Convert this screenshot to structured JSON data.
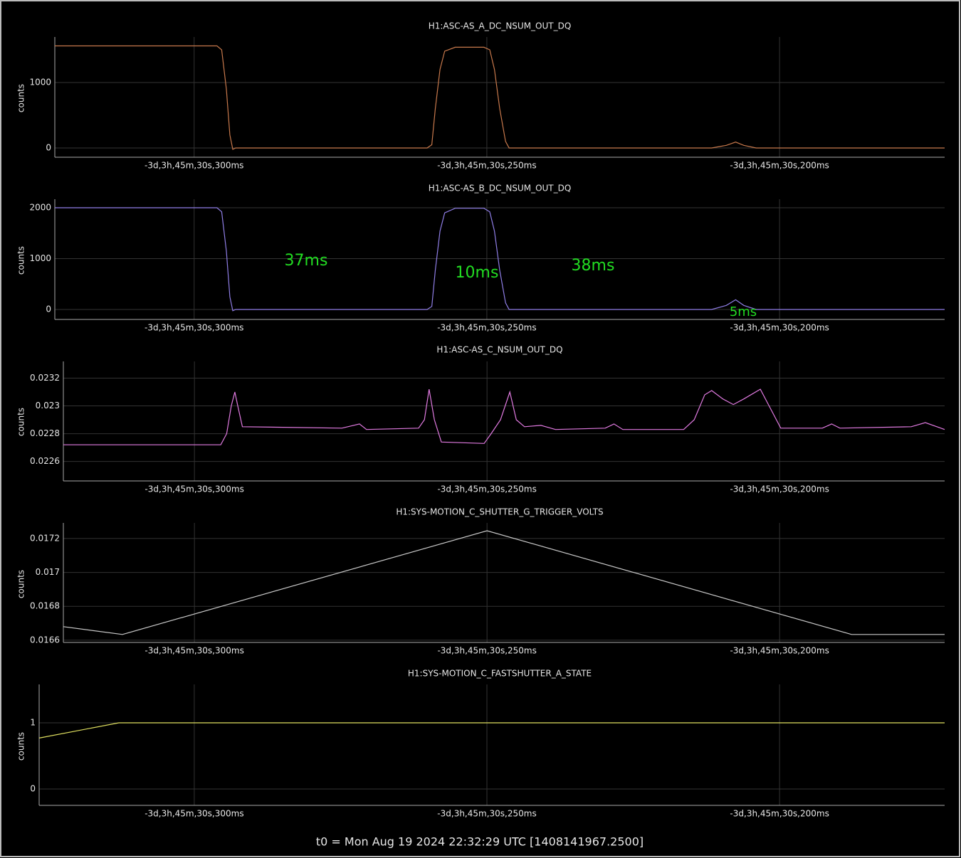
{
  "chart_data": [
    {
      "type": "line",
      "title": "H1:ASC-AS_A_DC_NSUM_OUT_DQ",
      "ylabel": "counts",
      "color": "#c8794c",
      "grid": true,
      "x": [
        -323.8,
        -296.1,
        -295.3,
        -294.5,
        -293.9,
        -293.4,
        -292.9,
        -260.2,
        -259.4,
        -258.8,
        -258.0,
        -257.2,
        -255.4,
        -250.5,
        -249.5,
        -248.7,
        -247.8,
        -246.8,
        -246.2,
        -211.6,
        -209.1,
        -207.5,
        -206.1,
        -204.0,
        -171.8
      ],
      "values": [
        1560,
        1560,
        1500,
        900,
        200,
        -20,
        0,
        0,
        50,
        600,
        1200,
        1480,
        1540,
        1540,
        1500,
        1200,
        600,
        100,
        0,
        0,
        40,
        90,
        40,
        0,
        0
      ],
      "xlim": [
        -323.8,
        -171.8
      ],
      "xticks": [
        {
          "value": -300,
          "label": "-3d,3h,45m,30s,300ms"
        },
        {
          "value": -250,
          "label": "-3d,3h,45m,30s,250ms"
        },
        {
          "value": -200,
          "label": "-3d,3h,45m,30s,200ms"
        }
      ],
      "ylim": [
        -141,
        1696
      ],
      "yticks": [
        0,
        1000
      ]
    },
    {
      "type": "line",
      "title": "H1:ASC-AS_B_DC_NSUM_OUT_DQ",
      "ylabel": "counts",
      "color": "#8f7ee6",
      "grid": true,
      "x": [
        -323.8,
        -296.1,
        -295.3,
        -294.5,
        -293.9,
        -293.4,
        -292.9,
        -260.2,
        -259.4,
        -258.8,
        -258.0,
        -257.2,
        -255.4,
        -250.5,
        -249.5,
        -248.7,
        -247.8,
        -246.8,
        -246.2,
        -211.6,
        -209.1,
        -207.5,
        -206.1,
        -204.0,
        -171.8
      ],
      "values": [
        2000,
        2000,
        1920,
        1150,
        250,
        -25,
        0,
        0,
        60,
        770,
        1540,
        1900,
        1990,
        1990,
        1920,
        1540,
        770,
        130,
        0,
        0,
        80,
        190,
        80,
        0,
        0
      ],
      "xlim": [
        -323.8,
        -171.8
      ],
      "xticks": [
        {
          "value": -300,
          "label": "-3d,3h,45m,30s,300ms"
        },
        {
          "value": -250,
          "label": "-3d,3h,45m,30s,250ms"
        },
        {
          "value": -200,
          "label": "-3d,3h,45m,30s,200ms"
        }
      ],
      "ylim": [
        -196,
        2168
      ],
      "yticks": [
        0,
        1000,
        2000
      ],
      "annotations": [
        "37ms",
        "10ms",
        "38ms",
        "5ms"
      ]
    },
    {
      "type": "line",
      "title": "H1:ASC-AS_C_NSUM_OUT_DQ",
      "ylabel": "counts",
      "color": "#e07ae0",
      "grid": true,
      "x": [
        -322.4,
        -295.5,
        -294.5,
        -293.7,
        -293.1,
        -292.6,
        -291.8,
        -274.8,
        -271.8,
        -270.6,
        -261.7,
        -260.7,
        -259.9,
        -259.0,
        -257.8,
        -250.5,
        -249.3,
        -247.7,
        -246.1,
        -245.0,
        -243.6,
        -240.8,
        -238.3,
        -229.8,
        -228.3,
        -226.8,
        -216.4,
        -214.6,
        -212.8,
        -211.6,
        -209.7,
        -207.9,
        -206.1,
        -203.3,
        -201.8,
        -199.8,
        -192.7,
        -191.1,
        -189.7,
        -177.5,
        -175.1,
        -171.8
      ],
      "values": [
        0.02272,
        0.02272,
        0.0228,
        0.023,
        0.0231,
        0.023,
        0.02285,
        0.02284,
        0.02287,
        0.02283,
        0.02284,
        0.0229,
        0.02312,
        0.0229,
        0.02274,
        0.02273,
        0.0228,
        0.0229,
        0.0231,
        0.0229,
        0.02285,
        0.02286,
        0.02283,
        0.02284,
        0.02287,
        0.02283,
        0.02283,
        0.0229,
        0.02308,
        0.02311,
        0.02305,
        0.02301,
        0.02305,
        0.02312,
        0.023,
        0.02284,
        0.02284,
        0.02287,
        0.02284,
        0.02285,
        0.02288,
        0.02283
      ],
      "xlim": [
        -322.4,
        -171.8
      ],
      "xticks": [
        {
          "value": -300,
          "label": "-3d,3h,45m,30s,300ms"
        },
        {
          "value": -250,
          "label": "-3d,3h,45m,30s,250ms"
        },
        {
          "value": -200,
          "label": "-3d,3h,45m,30s,200ms"
        }
      ],
      "ylim": [
        0.02246,
        0.02332
      ],
      "yticks": [
        0.0226,
        0.0228,
        0.023,
        0.0232
      ]
    },
    {
      "type": "line",
      "title": "H1:SYS-MOTION_C_SHUTTER_G_TRIGGER_VOLTS",
      "ylabel": "counts",
      "color": "#c8c8c8",
      "grid": true,
      "x": [
        -322.4,
        -312.3,
        -250.0,
        -187.7,
        -171.8
      ],
      "values": [
        0.01668,
        0.016634,
        0.017246,
        0.016634,
        0.016634
      ],
      "xlim": [
        -322.4,
        -171.8
      ],
      "xticks": [
        {
          "value": -300,
          "label": "-3d,3h,45m,30s,300ms"
        },
        {
          "value": -250,
          "label": "-3d,3h,45m,30s,250ms"
        },
        {
          "value": -200,
          "label": "-3d,3h,45m,30s,200ms"
        }
      ],
      "ylim": [
        0.016587,
        0.017292
      ],
      "yticks": [
        0.0166,
        0.0168,
        0.017,
        0.0172
      ]
    },
    {
      "type": "line",
      "title": "H1:SYS-MOTION_C_FASTSHUTTER_A_STATE",
      "ylabel": "counts",
      "color": "#e0e060",
      "grid": true,
      "x": [
        -326.5,
        -312.9,
        -171.8
      ],
      "values": [
        0.77,
        1,
        1
      ],
      "xlim": [
        -326.5,
        -171.8
      ],
      "xticks": [
        {
          "value": -300,
          "label": "-3d,3h,45m,30s,300ms"
        },
        {
          "value": -250,
          "label": "-3d,3h,45m,30s,250ms"
        },
        {
          "value": -200,
          "label": "-3d,3h,45m,30s,200ms"
        }
      ],
      "ylim": [
        -0.247,
        1.58
      ],
      "yticks": [
        0,
        1
      ]
    }
  ],
  "footer": "t0 = Mon Aug 19 2024 22:32:29 UTC [1408141967.2500]"
}
